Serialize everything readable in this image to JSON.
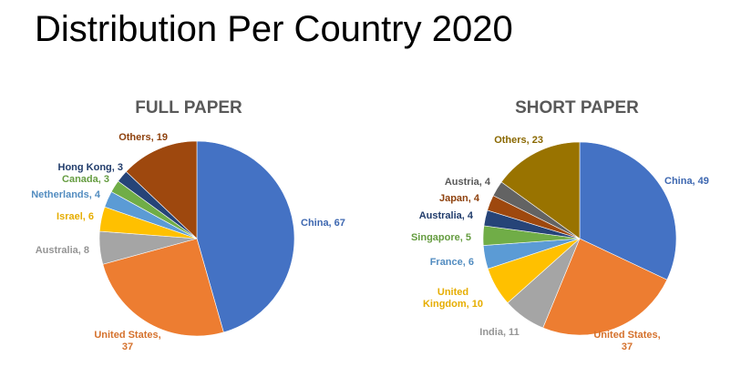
{
  "slide": {
    "title": "Distribution Per Country 2020"
  },
  "chart_data": [
    {
      "type": "pie",
      "title": "FULL PAPER",
      "start": "12 o'clock",
      "direction": "clockwise",
      "slices": [
        {
          "label": "China",
          "value": 67,
          "color": "#4472C4",
          "text": "China, 67"
        },
        {
          "label": "United States",
          "value": 37,
          "color": "#ED7D31",
          "text": "United States,\n37"
        },
        {
          "label": "Australia",
          "value": 8,
          "color": "#A5A5A5",
          "text": "Australia, 8"
        },
        {
          "label": "Israel",
          "value": 6,
          "color": "#FFC000",
          "text": "Israel, 6"
        },
        {
          "label": "Netherlands",
          "value": 4,
          "color": "#5B9BD5",
          "text": "Netherlands, 4"
        },
        {
          "label": "Canada",
          "value": 3,
          "color": "#70AD47",
          "text": "Canada, 3"
        },
        {
          "label": "Hong Kong",
          "value": 3,
          "color": "#264478",
          "text": "Hong Kong, 3"
        },
        {
          "label": "Others",
          "value": 19,
          "color": "#9E480E",
          "text": "Others, 19"
        }
      ]
    },
    {
      "type": "pie",
      "title": "SHORT PAPER",
      "start": "12 o'clock",
      "direction": "clockwise",
      "slices": [
        {
          "label": "China",
          "value": 49,
          "color": "#4472C4",
          "text": "China, 49"
        },
        {
          "label": "United States",
          "value": 37,
          "color": "#ED7D31",
          "text": "United States,\n37"
        },
        {
          "label": "India",
          "value": 11,
          "color": "#A5A5A5",
          "text": "India, 11"
        },
        {
          "label": "United Kingdom",
          "value": 10,
          "color": "#FFC000",
          "text": "United\nKingdom, 10"
        },
        {
          "label": "France",
          "value": 6,
          "color": "#5B9BD5",
          "text": "France, 6"
        },
        {
          "label": "Singapore",
          "value": 5,
          "color": "#70AD47",
          "text": "Singapore, 5"
        },
        {
          "label": "Australia",
          "value": 4,
          "color": "#264478",
          "text": "Australia, 4"
        },
        {
          "label": "Japan",
          "value": 4,
          "color": "#9E480E",
          "text": "Japan, 4"
        },
        {
          "label": "Austria",
          "value": 4,
          "color": "#636363",
          "text": "Austria, 4"
        },
        {
          "label": "Others",
          "value": 23,
          "color": "#997300",
          "text": "Others, 23"
        }
      ]
    }
  ]
}
